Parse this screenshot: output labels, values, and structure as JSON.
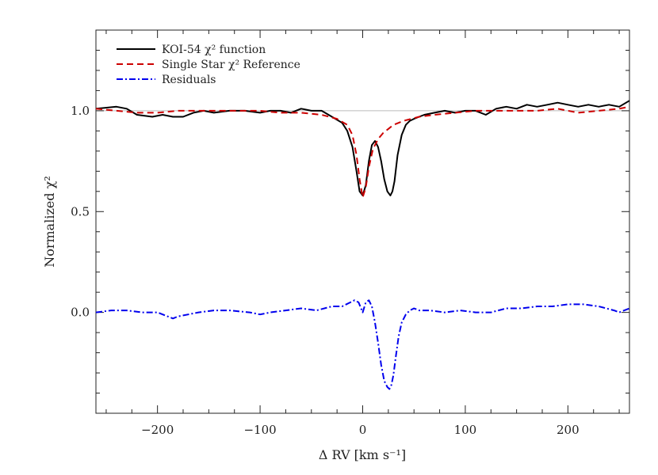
{
  "chart_data": {
    "type": "line",
    "title": "",
    "xlabel": "Δ RV [km s⁻¹]",
    "ylabel": "Normalized χ²",
    "xlim": [
      -260,
      260
    ],
    "ylim": [
      -0.5,
      1.4
    ],
    "x_ticks": [
      -200,
      -100,
      0,
      100,
      200
    ],
    "x_tick_labels": [
      "−200",
      "−100",
      "0",
      "100",
      "200"
    ],
    "y_ticks": [
      0.0,
      0.5,
      1.0
    ],
    "y_tick_labels": [
      "0.0",
      "0.5",
      "1.0"
    ],
    "grid": false,
    "legend": "top-left",
    "series": [
      {
        "name": "KOI-54 χ² function",
        "color": "#000000",
        "style": "solid",
        "x": [
          -260,
          -240,
          -230,
          -220,
          -205,
          -195,
          -185,
          -175,
          -165,
          -155,
          -145,
          -130,
          -115,
          -100,
          -90,
          -80,
          -70,
          -60,
          -50,
          -40,
          -30,
          -20,
          -15,
          -10,
          -6,
          -3,
          0,
          3,
          6,
          9,
          12,
          15,
          18,
          21,
          24,
          27,
          29,
          31,
          34,
          38,
          42,
          46,
          50,
          55,
          60,
          70,
          80,
          90,
          100,
          110,
          120,
          130,
          140,
          150,
          160,
          170,
          180,
          190,
          200,
          210,
          220,
          230,
          240,
          250,
          260
        ],
        "y": [
          1.01,
          1.02,
          1.01,
          0.98,
          0.97,
          0.98,
          0.97,
          0.97,
          0.99,
          1.0,
          0.99,
          1.0,
          1.0,
          0.99,
          1.0,
          1.0,
          0.99,
          1.01,
          1.0,
          1.0,
          0.97,
          0.94,
          0.9,
          0.82,
          0.7,
          0.6,
          0.58,
          0.63,
          0.75,
          0.83,
          0.85,
          0.82,
          0.75,
          0.66,
          0.6,
          0.58,
          0.6,
          0.65,
          0.78,
          0.88,
          0.93,
          0.95,
          0.96,
          0.97,
          0.98,
          0.99,
          1.0,
          0.99,
          1.0,
          1.0,
          0.98,
          1.01,
          1.02,
          1.01,
          1.03,
          1.02,
          1.03,
          1.04,
          1.03,
          1.02,
          1.03,
          1.02,
          1.03,
          1.02,
          1.05
        ]
      },
      {
        "name": "Single Star χ² Reference",
        "color": "#cc0000",
        "style": "dashed",
        "x": [
          -260,
          -240,
          -220,
          -200,
          -180,
          -160,
          -140,
          -120,
          -100,
          -80,
          -60,
          -40,
          -25,
          -15,
          -10,
          -6,
          -3,
          0,
          3,
          6,
          10,
          15,
          20,
          25,
          30,
          40,
          55,
          70,
          90,
          110,
          130,
          150,
          170,
          190,
          210,
          230,
          250,
          260
        ],
        "y": [
          1.01,
          1.0,
          0.99,
          0.99,
          1.0,
          1.0,
          1.0,
          1.0,
          1.0,
          0.99,
          0.99,
          0.98,
          0.96,
          0.93,
          0.88,
          0.78,
          0.66,
          0.57,
          0.62,
          0.72,
          0.81,
          0.86,
          0.89,
          0.91,
          0.93,
          0.95,
          0.97,
          0.98,
          0.99,
          1.0,
          1.0,
          1.0,
          1.0,
          1.01,
          0.99,
          1.0,
          1.01,
          1.02
        ]
      },
      {
        "name": "Residuals",
        "color": "#0000ee",
        "style": "dashdot",
        "x": [
          -260,
          -245,
          -230,
          -215,
          -200,
          -190,
          -185,
          -180,
          -170,
          -160,
          -145,
          -130,
          -110,
          -100,
          -90,
          -75,
          -60,
          -45,
          -30,
          -20,
          -12,
          -8,
          -4,
          0,
          3,
          6,
          9,
          12,
          15,
          18,
          21,
          24,
          26,
          28,
          30,
          32,
          35,
          38,
          42,
          46,
          50,
          55,
          65,
          80,
          95,
          110,
          125,
          140,
          155,
          170,
          185,
          200,
          215,
          230,
          245,
          250,
          255,
          260
        ],
        "y": [
          0.0,
          0.01,
          0.01,
          0.0,
          0.0,
          -0.02,
          -0.03,
          -0.02,
          -0.01,
          0.0,
          0.01,
          0.01,
          0.0,
          -0.01,
          0.0,
          0.01,
          0.02,
          0.01,
          0.03,
          0.03,
          0.05,
          0.06,
          0.05,
          0.0,
          0.05,
          0.06,
          0.03,
          -0.05,
          -0.15,
          -0.26,
          -0.34,
          -0.37,
          -0.38,
          -0.36,
          -0.31,
          -0.23,
          -0.12,
          -0.05,
          -0.01,
          0.01,
          0.02,
          0.01,
          0.01,
          0.0,
          0.01,
          0.0,
          0.0,
          0.02,
          0.02,
          0.03,
          0.03,
          0.04,
          0.04,
          0.03,
          0.01,
          0.0,
          0.01,
          0.02
        ]
      }
    ]
  }
}
